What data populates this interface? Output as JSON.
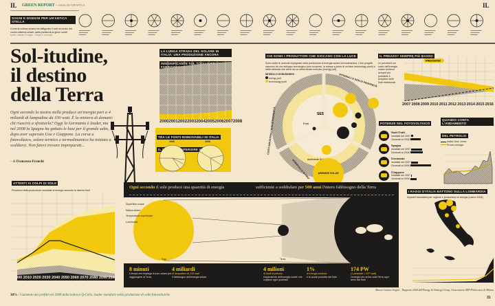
{
  "header": {
    "logo": "IL",
    "section": "GREEN REPORT",
    "subsection": "– ANALISI GRAFICA",
    "logo_right": "IL"
  },
  "symbols": {
    "label": "SOGNI E DISEGNI PER UN'ANTICA STELLA",
    "text": "Come la cultura umana ha raffigurato il sole al centro del nostro sistema solare, dalla preistoria ai giorni nostri",
    "source": "fonte: Adrian Frutiger, 'Segni e simboli'"
  },
  "title": {
    "line1": "Sol-itudine,",
    "line2": "il destino",
    "line3": "della Terra"
  },
  "intro": "Ogni secondo la nostra stella produce un'energia pari a 4 miliardi di lampadine da 100 watt. È la miniera di domani: chi riuscirà a sfruttarla? Oggi la Germania è leader, ma nel 2008 la Spagna ha gettato le basi per il grande salto, dopo aver superato Usa e Giappone. La corsa a fotovoltaico, solare termico e termodinamico ha iniziato a scaldarsi. Non fatevi trovare impreparati...",
  "author": {
    "prefix": "– di",
    "name": "Francesco Franchi"
  },
  "road": {
    "label1": "LA LUNGA STRADA DEL SOLARE IN ITALIA: UNA PRODUZIONE ANCORA",
    "label2": "INSIGNIFICANTE SUL TOTALE DEL FABBISOGNO NAZIONALE",
    "text": "In Italia nel 2008 l'energia prodotta da fonti alternative è stata pari al 16,9% del totale consumato nel Paese. Nel 2000 la quota era del 18%.",
    "years": [
      "2000",
      "2001",
      "2002",
      "2003",
      "2004",
      "2005",
      "2006",
      "2007",
      "2008"
    ]
  },
  "pies": {
    "label1": "TRA LE FONTI RINNOVABILI IN ITALIA",
    "label2": "IL SOLARE È INFERIORE ALL'1%",
    "years": [
      "2000",
      "2008"
    ]
  },
  "producers": {
    "label": "CHI SONO I PRODUTTORI CHE GIOCANO CON LA LUCE",
    "text": "Sono molte le aziende impegnate nella produzione di energia solare-termodinamica. I loro progetti nascono da uno sviluppo tecnologico (uno scoperto, la messa a punto di un'idea: technology push) o dalla richiesta che viene da un determinato mercato (energy pull)",
    "legend_title": "MODELLO DI BUSINESS",
    "legend": [
      {
        "name": "energy pull",
        "color": "#1d1b19"
      },
      {
        "name": "technology push",
        "color": "#f2c80f"
      }
    ],
    "ring_labels": [
      "INTERNALI E NON DI PROPRIETÀ",
      "COSTI INDUSTRIALI NON DI PROPRIETÀ",
      "INTERNALI E DI PROPRIETÀ"
    ],
    "companies": [
      "SES",
      "Enel",
      "Archimede Solar"
    ],
    "center_label": "AREMIDE SOLAR"
  },
  "price": {
    "label": "IL PREZZO? SEMPRE PIÙ BASSO",
    "text": "Le previsioni sul costo dell'energia solare rendono sempre più probabile il sorpasso sulle fonti tradizionali.",
    "forecast": "PREVISIONI",
    "years": [
      "2007",
      "2008",
      "2009",
      "2010",
      "2011",
      "2012",
      "2013",
      "2014",
      "2015",
      "2016"
    ]
  },
  "power": {
    "label": "POTENZE DEL FOTOVOLTAICO",
    "countries": [
      {
        "name": "Stati Uniti",
        "installed": "Installati nel 2007",
        "forecast": "Generati al 2008",
        "v1": 0.1,
        "v2": 0.5
      },
      {
        "name": "Spagna",
        "installed": "Installati nel 2007",
        "forecast": "Generati al 2008",
        "v1": 0.55,
        "v2": 0.6
      },
      {
        "name": "Germania",
        "installed": "Installati nel 2007",
        "forecast": "Generati al 2008",
        "v1": 0.35,
        "v2": 1.0
      },
      {
        "name": "Giappone",
        "installed": "Installati nel 2007",
        "forecast": "Generati al 2008",
        "v1": 0.05,
        "v2": 0.3
      }
    ]
  },
  "oil": {
    "label1": "QUANDO CONTA L'ANDAMENTO",
    "label2": "DEL PETROLIO",
    "legend": [
      "Indice Dow Jones",
      "Prezzo energia"
    ]
  },
  "sunshine": {
    "label": "ATTENTI AI COLPI DI SOLE",
    "text": "Previsioni della produzione mondiale di energia secondo le diverse fonti",
    "years": [
      "2000",
      "2010",
      "2020",
      "2030",
      "2040",
      "2050",
      "2060",
      "2070",
      "2080",
      "2090",
      "2100"
    ]
  },
  "panel": {
    "head_y1": "Ogni secondo",
    "head_1": "il sole produce una quantità di energia",
    "head_2": "sufficiente a soddisfare per",
    "head_y2": "500 anni",
    "head_3": "l'intero fabbisogno della Terra",
    "facts": [
      "Superficie solare",
      "Massa solare",
      "Temperatura superficiale",
      "Luminosità"
    ],
    "sun_label": "Sole",
    "earth_label": "Terra",
    "stats": [
      {
        "v": "8 minuti",
        "t": "il tempo che impiega la luce solare per raggiungere la Terra"
      },
      {
        "v": "4 miliardi",
        "y": "di lampadine da 100 watt",
        "t": "il fabbisogno dell'energia solare"
      },
      {
        "v": "4 milioni",
        "y": "di barili di petrolio",
        "t": "l'equivalente dell'energia solare che colpisce ogni quadrato"
      },
      {
        "v": "1%",
        "y": "di energia elettrica",
        "t": "è la quota prodotta dal Sole"
      },
      {
        "v": "174 PW",
        "y": "(1 petawatt = 10¹⁵ watt)",
        "t": "l'energia che arriva sulla Terra ogni anno dal Sole"
      }
    ]
  },
  "italy": {
    "label": "I RAGGI D'ITALIA BATTONO SULLA LOMBARDIA",
    "text": "Impianti fotovoltaici per regione e produzione di energia (marzo 2008)"
  },
  "footer": {
    "stat": "30%",
    "text": "/ l'aumento dei profitti nel 2008 della tedesca Q-Cells, leader mondiale nella produzione di celle fotovoltaiche",
    "credits": "Maria Cristina Origlia – Rapporto 2008 dell'Energy & Strategy Group, Osservatorio MIP-Politecnico di Milano",
    "page_left": "30",
    "page_right": "31"
  }
}
